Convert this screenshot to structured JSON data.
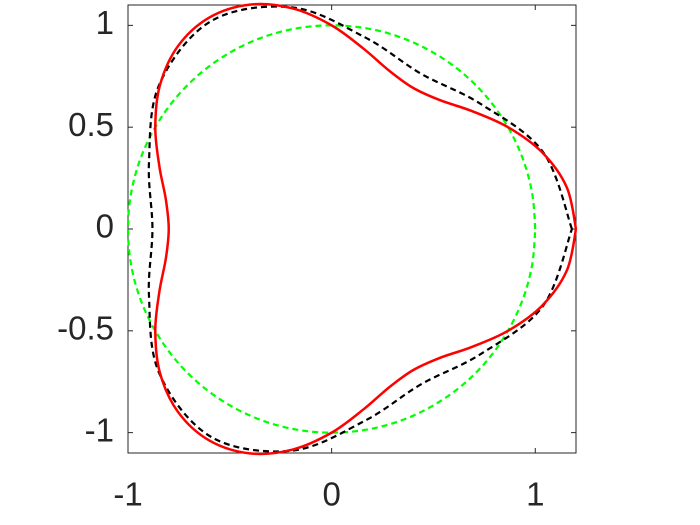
{
  "chart_data": {
    "type": "line",
    "xlim": [
      -1,
      1.2
    ],
    "ylim": [
      -1.1,
      1.1
    ],
    "xticks": [
      -1,
      0,
      1
    ],
    "yticks": [
      -1,
      -0.5,
      0,
      0.5,
      1
    ],
    "grid": false,
    "series": [
      {
        "color": "#00ff00",
        "dash": true,
        "x": [
          1,
          0.985,
          0.94,
          0.866,
          0.766,
          0.643,
          0.5,
          0.342,
          0.174,
          0,
          -0.174,
          -0.342,
          -0.5,
          -0.643,
          -0.766,
          -0.866,
          -0.94,
          -0.985,
          -1,
          -0.985,
          -0.94,
          -0.866,
          -0.766,
          -0.643,
          -0.5,
          -0.342,
          -0.174,
          0,
          0.174,
          0.342,
          0.5,
          0.643,
          0.766,
          0.866,
          0.94,
          0.985,
          1
        ],
        "y": [
          0,
          0.174,
          0.342,
          0.5,
          0.643,
          0.766,
          0.866,
          0.94,
          0.985,
          1,
          0.985,
          0.94,
          0.866,
          0.766,
          0.643,
          0.5,
          0.342,
          0.174,
          0,
          -0.174,
          -0.342,
          -0.5,
          -0.643,
          -0.766,
          -0.866,
          -0.94,
          -0.985,
          -1,
          -0.985,
          -0.94,
          -0.866,
          -0.766,
          -0.643,
          -0.5,
          -0.342,
          -0.174,
          0
        ]
      },
      {
        "color": "#000000",
        "dash": true,
        "x": [
          1.18,
          1.038,
          0.732,
          0.44,
          0.166,
          -0.192,
          -0.59,
          -0.846,
          -0.897,
          -0.88,
          -0.897,
          -0.846,
          -0.59,
          -0.192,
          0.166,
          0.44,
          0.732,
          1.038,
          1.18
        ],
        "y": [
          0,
          0.378,
          0.614,
          0.762,
          0.94,
          1.088,
          1.022,
          0.71,
          0.327,
          0,
          -0.327,
          -0.71,
          -1.022,
          -1.088,
          -0.94,
          -0.762,
          -0.614,
          -0.378,
          0
        ]
      },
      {
        "color": "#ff0000",
        "dash": false,
        "x": [
          1.2,
          1.155,
          1.034,
          0.866,
          0.689,
          0.531,
          0.4,
          0.283,
          0.156,
          0,
          -0.191,
          -0.401,
          -0.6,
          -0.754,
          -0.843,
          -0.866,
          -0.846,
          -0.814,
          -0.8,
          -0.814,
          -0.846,
          -0.866,
          -0.843,
          -0.754,
          -0.6,
          -0.401,
          -0.191,
          0,
          0.156,
          0.283,
          0.4,
          0.531,
          0.689,
          0.866,
          1.034,
          1.155,
          1.2
        ],
        "y": [
          0,
          0.204,
          0.376,
          0.5,
          0.579,
          0.633,
          0.693,
          0.777,
          0.886,
          1,
          1.083,
          1.102,
          1.039,
          0.899,
          0.707,
          0.5,
          0.308,
          0.144,
          0,
          -0.144,
          -0.308,
          -0.5,
          -0.707,
          -0.899,
          -1.039,
          -1.102,
          -1.083,
          -1,
          -0.886,
          -0.777,
          -0.693,
          -0.633,
          -0.579,
          -0.5,
          -0.376,
          -0.204,
          0
        ]
      }
    ]
  }
}
